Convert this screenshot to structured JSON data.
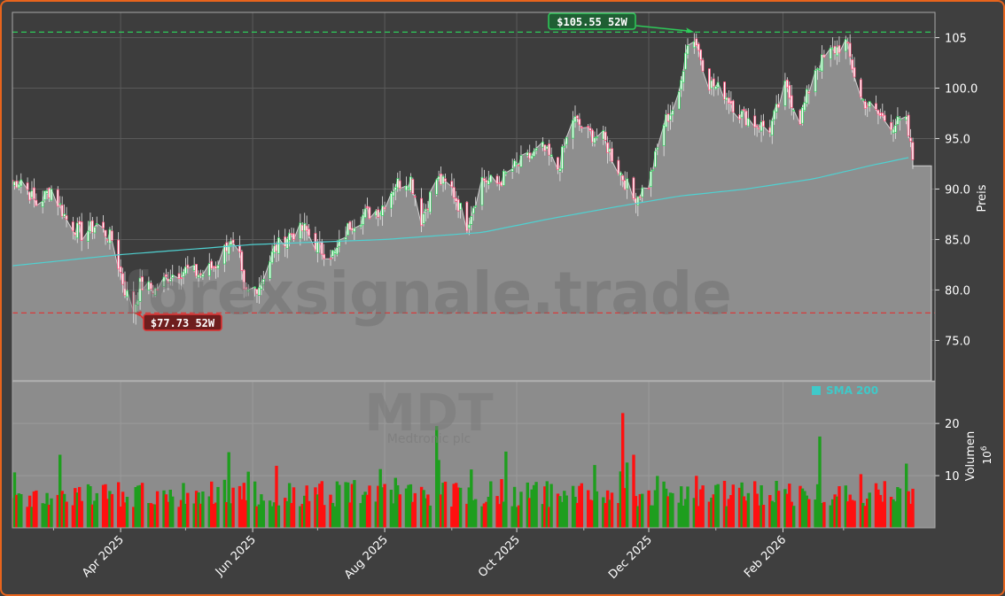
{
  "chart_data": {
    "type": "candlestick",
    "watermark": "forexsignale.trade",
    "ticker": "MDT",
    "company": "Medtronic plc",
    "price_axis": {
      "label": "Preis",
      "ylim": [
        71.0,
        107.5
      ],
      "ticks": [
        "75.0",
        "80.0",
        "85.0",
        "90.0",
        "95.0",
        "100.0",
        "105"
      ]
    },
    "volume_axis": {
      "label": "Volumen",
      "exponent": "10",
      "exponent_power": "6",
      "ylim": [
        0,
        28
      ],
      "ticks": [
        "10",
        "20"
      ]
    },
    "x_ticks": [
      "Apr 2025",
      "Jun 2025",
      "Aug 2025",
      "Oct 2025",
      "Dec 2025",
      "Feb 2026"
    ],
    "legend": {
      "sma_label": "SMA 200"
    },
    "annotations": {
      "high_label": "$105.55 52W",
      "high_value": 105.55,
      "low_label": "$77.73 52W",
      "low_value": 77.73
    },
    "last_price": 92.3,
    "price_path": [
      [
        "2025-02-10",
        90.5
      ],
      [
        "2025-02-14",
        91.0
      ],
      [
        "2025-02-21",
        88.5
      ],
      [
        "2025-02-28",
        90.0
      ],
      [
        "2025-03-07",
        87.0
      ],
      [
        "2025-03-14",
        85.5
      ],
      [
        "2025-03-21",
        86.5
      ],
      [
        "2025-03-28",
        85.0
      ],
      [
        "2025-04-03",
        80.0
      ],
      [
        "2025-04-07",
        78.0
      ],
      [
        "2025-04-10",
        80.5
      ],
      [
        "2025-04-17",
        80.0
      ],
      [
        "2025-04-24",
        81.5
      ],
      [
        "2025-05-01",
        82.0
      ],
      [
        "2025-05-08",
        81.5
      ],
      [
        "2025-05-15",
        82.5
      ],
      [
        "2025-05-21",
        84.8
      ],
      [
        "2025-05-26",
        83.0
      ],
      [
        "2025-05-28",
        79.5
      ],
      [
        "2025-06-04",
        80.5
      ],
      [
        "2025-06-11",
        84.0
      ],
      [
        "2025-06-18",
        85.5
      ],
      [
        "2025-06-25",
        86.0
      ],
      [
        "2025-07-02",
        84.0
      ],
      [
        "2025-07-09",
        83.5
      ],
      [
        "2025-07-16",
        86.5
      ],
      [
        "2025-07-23",
        87.5
      ],
      [
        "2025-07-30",
        88.0
      ],
      [
        "2025-08-06",
        90.5
      ],
      [
        "2025-08-13",
        91.0
      ],
      [
        "2025-08-18",
        87.0
      ],
      [
        "2025-08-25",
        91.0
      ],
      [
        "2025-09-01",
        90.0
      ],
      [
        "2025-09-08",
        86.5
      ],
      [
        "2025-09-15",
        91.0
      ],
      [
        "2025-09-22",
        90.5
      ],
      [
        "2025-09-29",
        92.0
      ],
      [
        "2025-10-06",
        93.0
      ],
      [
        "2025-10-13",
        94.0
      ],
      [
        "2025-10-20",
        92.0
      ],
      [
        "2025-10-27",
        97.0
      ],
      [
        "2025-11-03",
        95.5
      ],
      [
        "2025-11-10",
        95.0
      ],
      [
        "2025-11-17",
        92.0
      ],
      [
        "2025-11-24",
        89.0
      ],
      [
        "2025-12-01",
        90.5
      ],
      [
        "2025-12-08",
        96.5
      ],
      [
        "2025-12-15",
        99.0
      ],
      [
        "2025-12-18",
        104.0
      ],
      [
        "2025-12-22",
        105.0
      ],
      [
        "2025-12-29",
        100.5
      ],
      [
        "2026-01-05",
        99.5
      ],
      [
        "2026-01-12",
        97.5
      ],
      [
        "2026-01-19",
        96.5
      ],
      [
        "2026-01-26",
        96.0
      ],
      [
        "2026-02-02",
        100.0
      ],
      [
        "2026-02-09",
        97.0
      ],
      [
        "2026-02-16",
        102.0
      ],
      [
        "2026-02-23",
        103.5
      ],
      [
        "2026-03-02",
        104.5
      ],
      [
        "2026-03-09",
        99.0
      ],
      [
        "2026-03-16",
        97.5
      ],
      [
        "2026-03-23",
        96.5
      ],
      [
        "2026-03-30",
        96.5
      ],
      [
        "2026-04-02",
        93.0
      ]
    ],
    "sma_200": [
      [
        "2025-02-10",
        82.4
      ],
      [
        "2025-04-01",
        83.5
      ],
      [
        "2025-06-01",
        84.5
      ],
      [
        "2025-08-01",
        85.0
      ],
      [
        "2025-09-15",
        85.7
      ],
      [
        "2025-10-15",
        87.0
      ],
      [
        "2025-11-15",
        88.2
      ],
      [
        "2025-12-15",
        89.3
      ],
      [
        "2026-01-15",
        90.0
      ],
      [
        "2026-02-15",
        91.0
      ],
      [
        "2026-03-15",
        92.4
      ],
      [
        "2026-04-02",
        93.2
      ]
    ]
  }
}
